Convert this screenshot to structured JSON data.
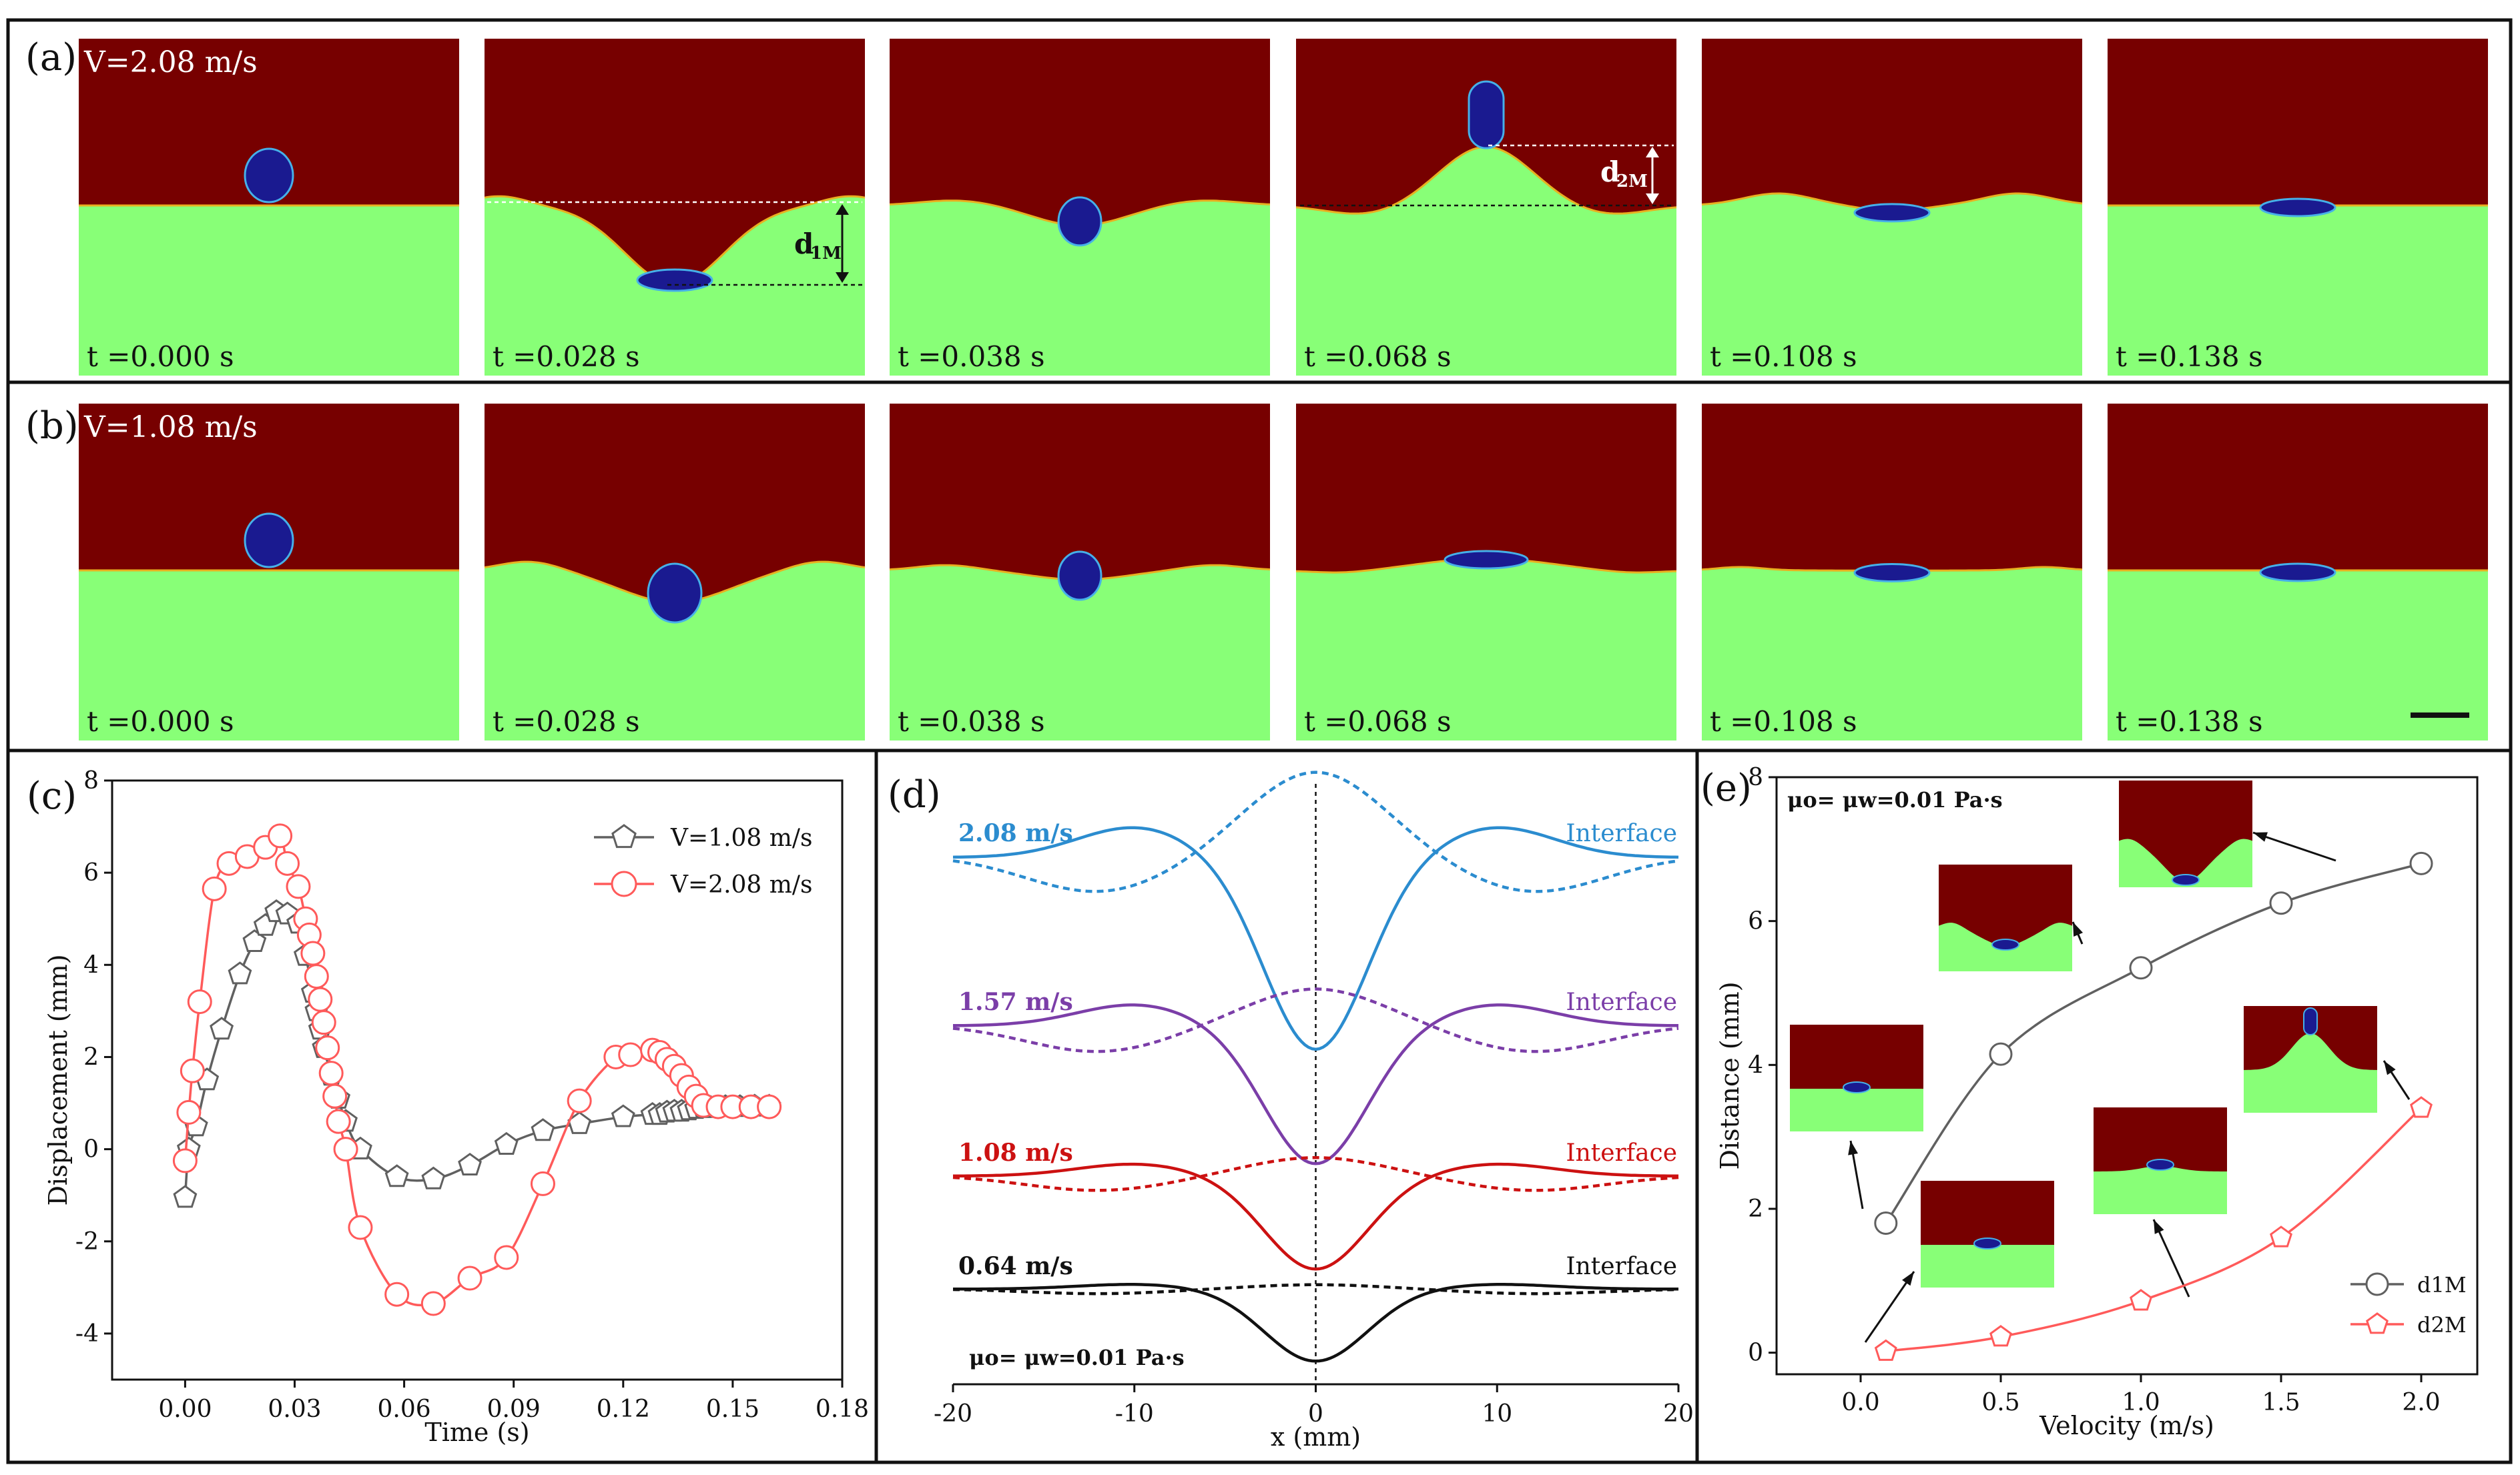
{
  "colors": {
    "oil": "#770000",
    "water": "#88ff77",
    "drop": "#1a1a90",
    "dropEdge": "#46b0e8",
    "red": "#ff5a5a",
    "gray": "#606060",
    "blue": "#2b8ccf",
    "purple": "#7b3ea8",
    "dred": "#cc1111",
    "black": "#111111"
  },
  "rows": [
    {
      "label": "(a)",
      "velocity": "V=2.08 m/s",
      "frames": [
        {
          "time": "t =0.000 s",
          "profile": "flat",
          "drop": "sphere-above"
        },
        {
          "time": "t =0.028 s",
          "profile": "deep-well",
          "drop": "lens-bottom"
        },
        {
          "time": "t =0.038 s",
          "profile": "shallow-well",
          "drop": "half-in"
        },
        {
          "time": "t =0.068 s",
          "profile": "jet-peak",
          "drop": "jet-top"
        },
        {
          "time": "t =0.108 s",
          "profile": "small-wave",
          "drop": "lens"
        },
        {
          "time": "t =0.138 s",
          "profile": "flat",
          "drop": "lens"
        }
      ],
      "annotations": {
        "d1": "d",
        "d1sub": "1M",
        "d2": "d",
        "d2sub": "2M"
      }
    },
    {
      "label": "(b)",
      "velocity": "V=1.08 m/s",
      "frames": [
        {
          "time": "t =0.000 s",
          "profile": "flat",
          "drop": "sphere-above"
        },
        {
          "time": "t =0.028 s",
          "profile": "mid-well",
          "drop": "half-in-deep"
        },
        {
          "time": "t =0.038 s",
          "profile": "small-well",
          "drop": "half-in"
        },
        {
          "time": "t =0.068 s",
          "profile": "bump",
          "drop": "lens-top"
        },
        {
          "time": "t =0.108 s",
          "profile": "tiny-wave",
          "drop": "lens"
        },
        {
          "time": "t =0.138 s",
          "profile": "flat",
          "drop": "lens"
        }
      ]
    }
  ],
  "chart_data": [
    {
      "panel": "(c)",
      "type": "line",
      "xlabel": "Time (s)",
      "ylabel": "Displacement (mm)",
      "xlim": [
        -0.02,
        0.18
      ],
      "ylim": [
        -5,
        8
      ],
      "xticks": [
        "0.00",
        "0.03",
        "0.06",
        "0.09",
        "0.12",
        "0.15",
        "0.18"
      ],
      "yticks": [
        "-4",
        "-2",
        "0",
        "2",
        "4",
        "6",
        "8"
      ],
      "legend": [
        "V=1.08 m/s",
        "V=2.08 m/s"
      ],
      "series": [
        {
          "name": "V=1.08 m/s",
          "color": "#606060",
          "marker": "pentagon",
          "x": [
            0,
            0.001,
            0.003,
            0.006,
            0.01,
            0.015,
            0.019,
            0.022,
            0.025,
            0.028,
            0.031,
            0.033,
            0.035,
            0.036,
            0.037,
            0.038,
            0.04,
            0.042,
            0.044,
            0.048,
            0.058,
            0.068,
            0.078,
            0.088,
            0.098,
            0.108,
            0.12,
            0.128,
            0.13,
            0.132,
            0.134,
            0.136,
            0.138,
            0.14,
            0.142,
            0.144,
            0.148,
            0.152,
            0.156,
            0.16
          ],
          "y": [
            -1.05,
            0.0,
            0.5,
            1.5,
            2.6,
            3.8,
            4.5,
            4.85,
            5.15,
            5.1,
            4.9,
            4.2,
            3.4,
            3.0,
            2.6,
            2.2,
            1.6,
            1.1,
            0.6,
            0.0,
            -0.6,
            -0.65,
            -0.35,
            0.1,
            0.4,
            0.55,
            0.7,
            0.75,
            0.75,
            0.8,
            0.82,
            0.82,
            0.85,
            0.88,
            0.9,
            0.9,
            0.92,
            0.92,
            0.93,
            0.93
          ]
        },
        {
          "name": "V=2.08 m/s",
          "color": "#ff5a5a",
          "marker": "circle",
          "x": [
            0,
            0.001,
            0.002,
            0.004,
            0.008,
            0.012,
            0.017,
            0.022,
            0.026,
            0.028,
            0.031,
            0.033,
            0.034,
            0.035,
            0.036,
            0.037,
            0.038,
            0.039,
            0.04,
            0.041,
            0.042,
            0.044,
            0.048,
            0.058,
            0.068,
            0.078,
            0.088,
            0.098,
            0.108,
            0.118,
            0.122,
            0.128,
            0.13,
            0.132,
            0.134,
            0.136,
            0.138,
            0.14,
            0.142,
            0.146,
            0.15,
            0.155,
            0.16
          ],
          "y": [
            -0.25,
            0.8,
            1.7,
            3.2,
            5.65,
            6.2,
            6.35,
            6.55,
            6.8,
            6.2,
            5.7,
            5.0,
            4.65,
            4.25,
            3.75,
            3.25,
            2.75,
            2.2,
            1.65,
            1.15,
            0.6,
            0.0,
            -1.7,
            -3.15,
            -3.35,
            -2.8,
            -2.35,
            -0.75,
            1.05,
            2.0,
            2.05,
            2.15,
            2.1,
            1.95,
            1.8,
            1.6,
            1.35,
            1.15,
            0.95,
            0.92,
            0.92,
            0.92,
            0.92
          ]
        }
      ]
    },
    {
      "panel": "(d)",
      "type": "line",
      "xlabel": "x (mm)",
      "xlim": [
        -20,
        20
      ],
      "xticks": [
        "-20",
        "-10",
        "0",
        "10",
        "20"
      ],
      "annotation": "μo= μw=0.01 Pa·s",
      "series": [
        {
          "name": "2.08 m/s",
          "color": "#2b8ccf",
          "interface_label": "Interface",
          "baseline": 0,
          "well": 3.2,
          "rim": 0.5,
          "peak": 1.4,
          "trough": 0.6
        },
        {
          "name": "1.57 m/s",
          "color": "#7b3ea8",
          "interface_label": "Interface",
          "baseline": 0,
          "well": 2.3,
          "rim": 0.35,
          "peak": 0.6,
          "trough": 0.45
        },
        {
          "name": "1.08 m/s",
          "color": "#cc1111",
          "interface_label": "Interface",
          "baseline": 0,
          "well": 1.55,
          "rim": 0.2,
          "peak": 0.3,
          "trough": 0.25
        },
        {
          "name": "0.64 m/s",
          "color": "#111111",
          "interface_label": "Interface",
          "baseline": 0,
          "well": 1.2,
          "rim": 0.08,
          "peak": 0.07,
          "trough": 0.08
        }
      ]
    },
    {
      "panel": "(e)",
      "type": "line",
      "xlabel": "Velocity (m/s)",
      "ylabel": "Distance (mm)",
      "xlim": [
        -0.3,
        2.2
      ],
      "ylim": [
        -0.3,
        8
      ],
      "xticks": [
        "0.0",
        "0.5",
        "1.0",
        "1.5",
        "2.0"
      ],
      "yticks": [
        "0",
        "2",
        "4",
        "6",
        "8"
      ],
      "annotation": "μo= μw=0.01 Pa·s",
      "legend": [
        "d1M",
        "d2M"
      ],
      "series": [
        {
          "name": "d1M",
          "color": "#606060",
          "marker": "circle",
          "x": [
            0.09,
            0.5,
            1.0,
            1.5,
            2.0
          ],
          "y": [
            1.8,
            4.15,
            5.35,
            6.25,
            6.8
          ]
        },
        {
          "name": "d2M",
          "color": "#ff5a5a",
          "marker": "pentagon",
          "x": [
            0.09,
            0.5,
            1.0,
            1.5,
            2.0
          ],
          "y": [
            0.02,
            0.22,
            0.72,
            1.6,
            3.4
          ]
        }
      ]
    }
  ],
  "labels": {
    "c": "(c)",
    "d": "(d)",
    "e": "(e)",
    "mu_text": "μ",
    "mu_o": "o",
    "mu_w": "w",
    "mu_rest": "=0.01 Pa·s",
    "d1M": "d",
    "d1Msub": "1M",
    "d2M": "d",
    "d2Msub": "2M"
  }
}
